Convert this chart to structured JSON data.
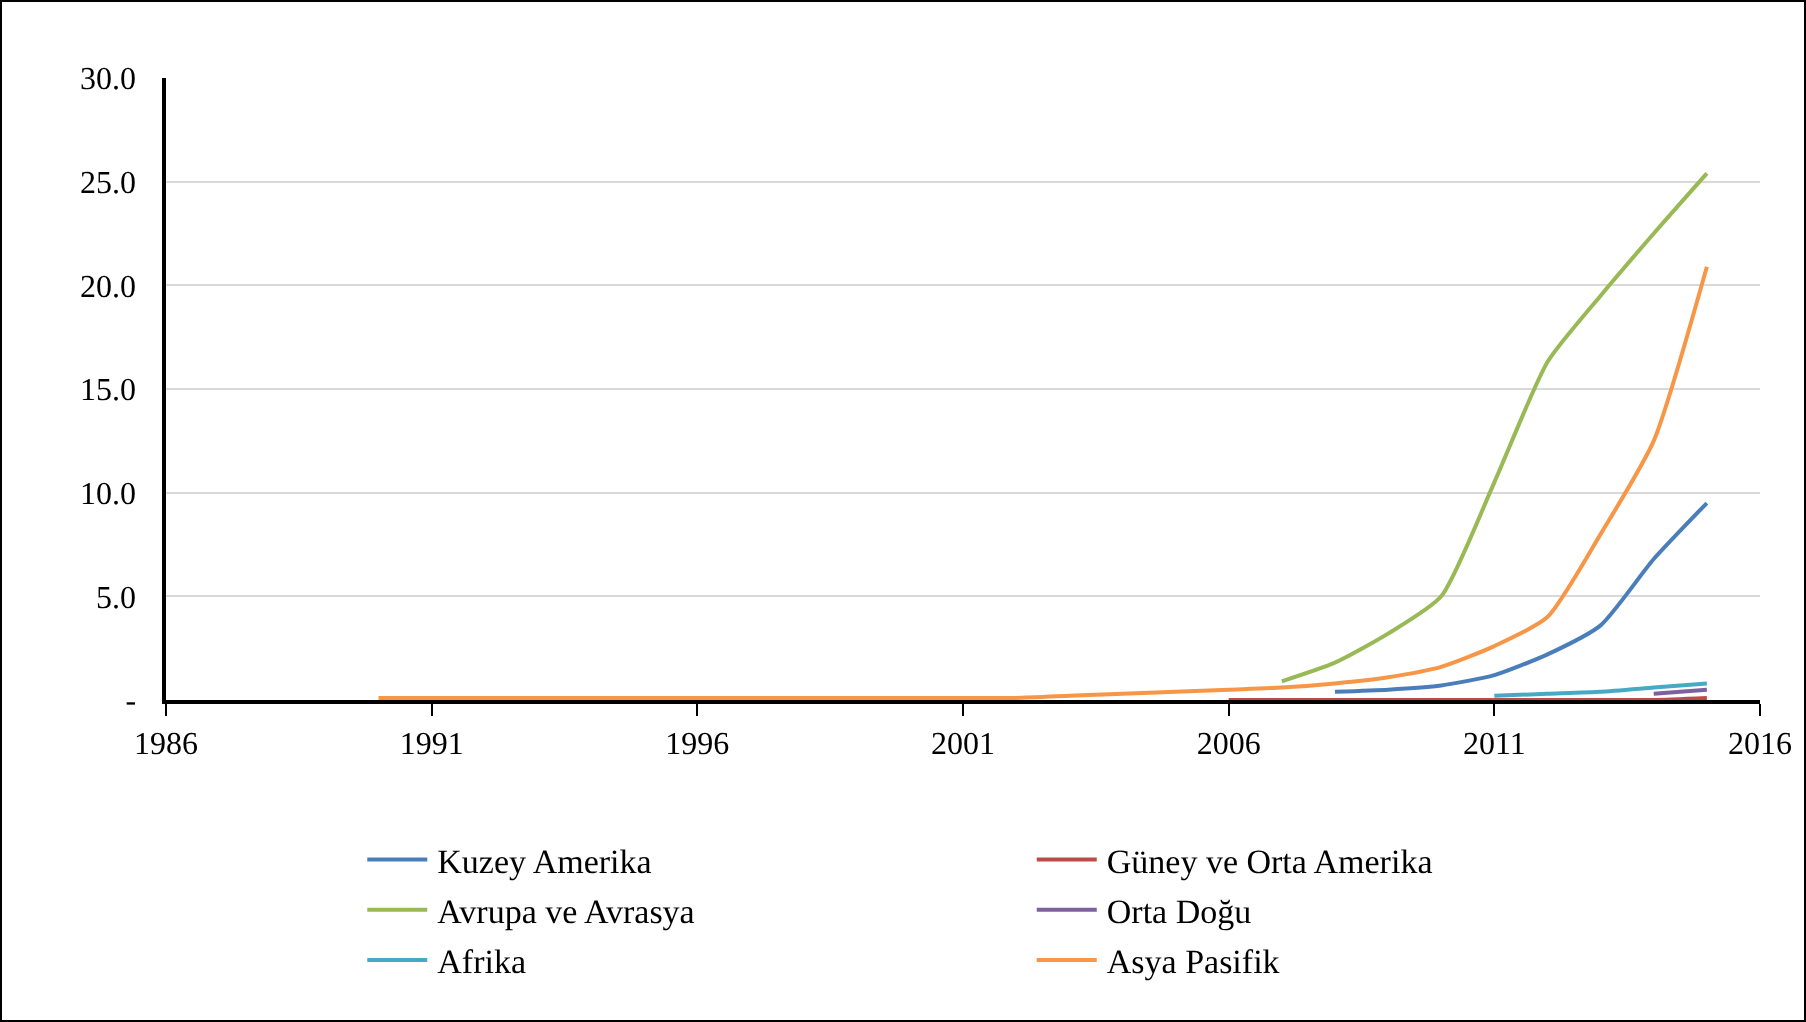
{
  "chart_data": {
    "type": "line",
    "x": [
      1990,
      1991,
      1992,
      1993,
      1994,
      1995,
      1996,
      1997,
      1998,
      1999,
      2000,
      2001,
      2002,
      2003,
      2004,
      2005,
      2006,
      2007,
      2008,
      2009,
      2010,
      2011,
      2012,
      2013,
      2014,
      2015
    ],
    "series": [
      {
        "name": "Kuzey Amerika",
        "color": "#4a7ebb",
        "values": [
          null,
          null,
          null,
          null,
          null,
          null,
          null,
          null,
          null,
          null,
          null,
          null,
          null,
          null,
          null,
          null,
          null,
          null,
          0.4,
          0.5,
          0.7,
          1.2,
          2.2,
          3.6,
          6.8,
          9.5
        ]
      },
      {
        "name": "Güney ve Orta Amerika",
        "color": "#be4b48",
        "values": [
          null,
          null,
          null,
          null,
          null,
          null,
          null,
          null,
          null,
          null,
          null,
          null,
          null,
          null,
          null,
          null,
          0.0,
          0.0,
          0.0,
          0.0,
          0.0,
          0.0,
          0.0,
          0.0,
          0.0,
          0.1
        ]
      },
      {
        "name": "Avrupa ve Avrasya",
        "color": "#98b954",
        "values": [
          null,
          null,
          null,
          null,
          null,
          null,
          null,
          null,
          null,
          null,
          null,
          null,
          null,
          null,
          null,
          null,
          null,
          0.9,
          1.8,
          3.2,
          5.0,
          10.5,
          16.3,
          19.5,
          22.5,
          25.4
        ]
      },
      {
        "name": "Orta Doğu",
        "color": "#7d60a0",
        "values": [
          null,
          null,
          null,
          null,
          null,
          null,
          null,
          null,
          null,
          null,
          null,
          null,
          null,
          null,
          null,
          null,
          null,
          null,
          null,
          null,
          null,
          null,
          null,
          null,
          0.3,
          0.5
        ]
      },
      {
        "name": "Afrika",
        "color": "#46aac5",
        "values": [
          null,
          null,
          null,
          null,
          null,
          null,
          null,
          null,
          null,
          null,
          null,
          null,
          null,
          null,
          null,
          null,
          null,
          null,
          null,
          null,
          null,
          0.2,
          0.3,
          0.4,
          0.6,
          0.8
        ]
      },
      {
        "name": "Asya Pasifik",
        "color": "#f79646",
        "values": [
          0.1,
          0.1,
          0.1,
          0.1,
          0.1,
          0.1,
          0.1,
          0.1,
          0.1,
          0.1,
          0.1,
          0.1,
          0.1,
          0.2,
          0.3,
          0.4,
          0.5,
          0.6,
          0.8,
          1.1,
          1.6,
          2.6,
          4.0,
          8.0,
          12.5,
          20.9
        ]
      }
    ],
    "xlim": [
      1986,
      2016
    ],
    "xticks": [
      1986,
      1991,
      1996,
      2001,
      2006,
      2011,
      2016
    ],
    "ylim": [
      0,
      30
    ],
    "yticks": [
      {
        "value": 0,
        "label": "-"
      },
      {
        "value": 5,
        "label": "5.0"
      },
      {
        "value": 10,
        "label": "10.0"
      },
      {
        "value": 15,
        "label": "15.0"
      },
      {
        "value": 20,
        "label": "20.0"
      },
      {
        "value": 25,
        "label": "25.0"
      },
      {
        "value": 30,
        "label": "30.0"
      }
    ],
    "grid": "y",
    "legend": "bottom",
    "marker": "none",
    "line_style": "solid"
  }
}
